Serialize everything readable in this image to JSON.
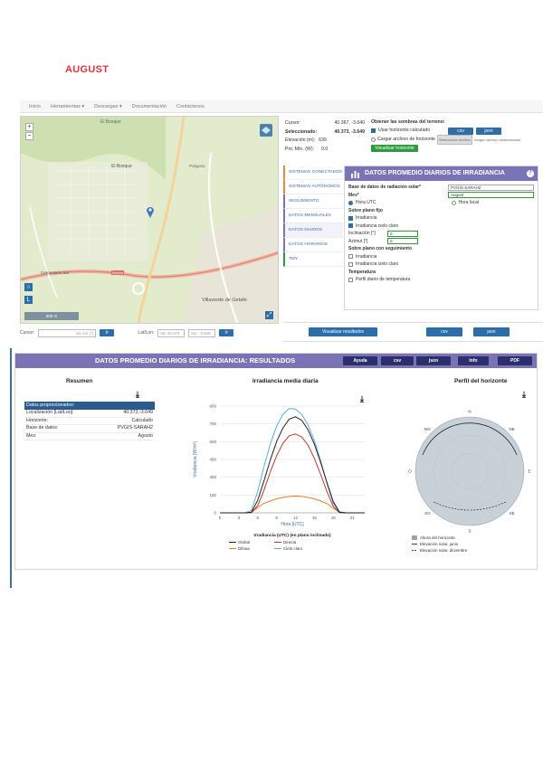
{
  "page": {
    "title": "AUGUST"
  },
  "navbar": {
    "items": [
      "Inicio",
      "Herramientas ▾",
      "Descargas ▾",
      "Documentación",
      "Contáctenos"
    ]
  },
  "map": {
    "labels": [
      "El Bosque",
      "El Bosque",
      "Poligono",
      "Cementerio Sur",
      "Madrid",
      "Villaverde de Getafe"
    ],
    "scale_label": "500 m"
  },
  "coord_bar": {
    "label1": "Cursor:",
    "input1_placeholder": "lat, lon (°)",
    "go1": "Ir",
    "label2": "Lat/Lon:",
    "input2_value": "lat: 40.373",
    "input3_value": "lon: -3.649",
    "go2": "Ir"
  },
  "info": {
    "cursor_label": "Cursor:",
    "cursor_value": "40.367, -3.640",
    "selected_label": "Seleccionado:",
    "selected_value": "40.373, -3.649",
    "elevation_label": "Elevación (m):",
    "elevation_value": "639",
    "azimuth_label": "Pot. Mín. (W):",
    "azimuth_value": "0.0",
    "horizon_title": "Obtener las sombras del terreno:",
    "horizon_opt1": "Usar horizonte calculado",
    "horizon_opt2": "Cargar archivo de horizonte",
    "file_btn": "Seleccionar archivo",
    "file_status": "Ningún archivo seleccionado",
    "btn_csv": "csv",
    "btn_json": "json",
    "btn_show": "Visualizar horizonte"
  },
  "tabs": [
    "SISTEMAS CONECTADOS",
    "SISTEMAS AUTÓNOMOS",
    "SEGUIMIENTO",
    "DATOS MENSUALES",
    "DATOS DIARIOS",
    "DATOS HORARIOS",
    "TMY"
  ],
  "form": {
    "title": "DATOS PROMEDIO DIARIOS DE IRRADIANCIA",
    "db_label": "Base de datos de radiación solar*",
    "db_value": "PVGIS-SARAH2",
    "month_label": "Mes*",
    "month_value": "August",
    "utc_label": "Hora UTC",
    "local_label": "Hora local",
    "fixed_title": "Sobre plano fijo",
    "opt_irradiance": "Irradiancia",
    "opt_clearsky": "Irradiancia cielo claro",
    "slope_label": "Inclinación [°]",
    "slope_value": "0",
    "azimuth_label": "Azimut [°]",
    "azimuth_value": "0",
    "tracking_title": "Sobre plano con seguimiento",
    "opt_track_irr": "Irradiancia",
    "opt_track_clear": "Irradiancia cielo claro",
    "temp_title": "Temperatura",
    "opt_temp": "Perfil diario de temperatura"
  },
  "actions": {
    "visualize": "Visualizar resultados",
    "csv": "csv",
    "json": "json"
  },
  "results": {
    "title": "DATOS PROMEDIO DIARIOS DE IRRADIANCIA: RESULTADOS",
    "btn_help": "Ayuda",
    "btn_csv": "csv",
    "btn_json": "json",
    "btn_info": "Info",
    "btn_pdf": "PDF",
    "col1_title": "Resumen",
    "col2_title": "Irradiancia media diaria",
    "col3_title": "Perfil del horizonte",
    "summary_header": "Datos proporcionados:",
    "summary_rows": [
      {
        "k": "Localización [Lat/Lon]:",
        "v": "40.373,-3.649"
      },
      {
        "k": "Horizonte:",
        "v": "Calculado"
      },
      {
        "k": "Base de datos:",
        "v": "PVGIS-SARAH2"
      },
      {
        "k": "Mes:",
        "v": "Agosto"
      }
    ],
    "horizon_legend": [
      "Altura del horizonte",
      "Elevación solar, junio",
      "Elevación solar, diciembre"
    ]
  },
  "chart_data": [
    {
      "type": "line",
      "title": "Irradiancia media diaria",
      "xlabel": "Hora [UTC]",
      "ylabel": "Irradiancia [W/m²]",
      "legend_title": "Irradiancia (UTC) (en plano inclinado)",
      "x": [
        0,
        1,
        2,
        3,
        4,
        5,
        6,
        7,
        8,
        9,
        10,
        11,
        12,
        13,
        14,
        15,
        16,
        17,
        18,
        19,
        20,
        21,
        22,
        23
      ],
      "xticks": [
        0,
        3,
        6,
        9,
        12,
        15,
        18,
        21
      ],
      "yticks": [
        0,
        150,
        300,
        450,
        600,
        750,
        900
      ],
      "ylim": [
        0,
        900
      ],
      "xlim": [
        0,
        23
      ],
      "series": [
        {
          "name": "Global",
          "color": "#222222",
          "values": [
            0,
            0,
            0,
            0,
            0,
            5,
            105,
            270,
            445,
            600,
            715,
            790,
            810,
            780,
            700,
            580,
            425,
            255,
            95,
            5,
            0,
            0,
            0,
            0
          ]
        },
        {
          "name": "Directa",
          "color": "#c0392b",
          "values": [
            0,
            0,
            0,
            0,
            0,
            2,
            60,
            190,
            345,
            480,
            585,
            650,
            665,
            640,
            570,
            460,
            325,
            180,
            55,
            2,
            0,
            0,
            0,
            0
          ]
        },
        {
          "name": "Difusa",
          "color": "#e67e22",
          "values": [
            0,
            0,
            0,
            0,
            0,
            3,
            45,
            80,
            100,
            118,
            130,
            138,
            142,
            138,
            130,
            118,
            100,
            78,
            40,
            3,
            0,
            0,
            0,
            0
          ]
        },
        {
          "name": "Cielo claro",
          "color": "#5dade2",
          "values": [
            0,
            0,
            0,
            0,
            0,
            20,
            180,
            390,
            580,
            730,
            830,
            880,
            875,
            830,
            740,
            610,
            440,
            250,
            80,
            10,
            0,
            0,
            0,
            0
          ]
        }
      ]
    },
    {
      "type": "polar",
      "title": "Perfil del horizonte",
      "tick_labels": [
        "N",
        "NE",
        "E",
        "SE",
        "S",
        "SO",
        "O",
        "NO"
      ],
      "series": [
        {
          "name": "Altura del horizonte",
          "color": "#9aa4ae"
        },
        {
          "name": "Elevación solar, junio",
          "color": "#111111"
        },
        {
          "name": "Elevación solar, diciembre",
          "color": "#111111"
        }
      ]
    }
  ]
}
